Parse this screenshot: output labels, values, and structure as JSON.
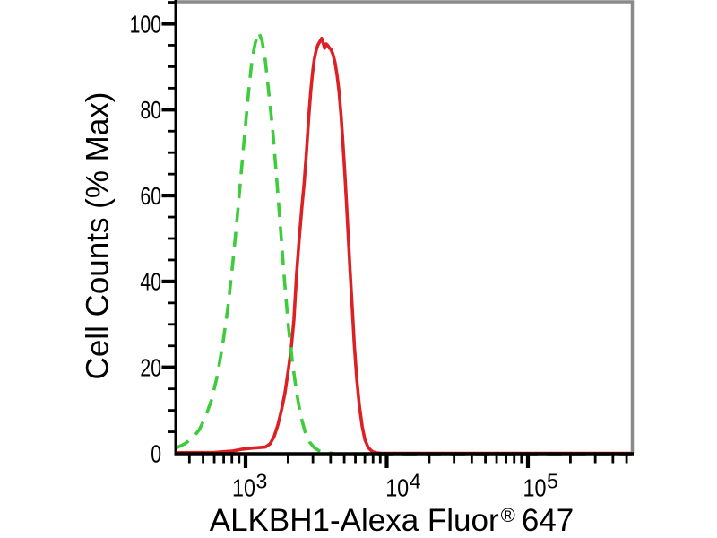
{
  "figure": {
    "background": "#ffffff",
    "frame_color": "#8a8a8a",
    "axis_color": "#000000"
  },
  "chart_data": {
    "type": "line",
    "subtype": "flow-cytometry-histogram",
    "title": "",
    "xlabel": "ALKBH1-Alexa Fluor® 647",
    "xlabel_parts": {
      "main": "ALKBH1-Alexa Fluor",
      "registered_mark": "®",
      "suffix": "647"
    },
    "ylabel": "Cell Counts (% Max)",
    "x_scale": "log",
    "x_range": [
      320,
      545000
    ],
    "y_range": [
      0,
      100
    ],
    "x_major_ticks": [
      1000,
      10000,
      100000
    ],
    "x_major_tick_labels": [
      "10³",
      "10⁴",
      "10⁵"
    ],
    "x_tick_label_base": "10",
    "x_tick_label_exponents": [
      3,
      4,
      5
    ],
    "y_major_ticks": [
      0,
      20,
      40,
      60,
      80,
      100
    ],
    "y_minor_tick_step": 5,
    "grid": false,
    "legend": "none",
    "series": [
      {
        "name": "control-green-dashed",
        "line_style": "dashed",
        "color": "#3ccc3c",
        "points": [
          [
            320,
            1.2
          ],
          [
            370,
            2.2
          ],
          [
            420,
            3.5
          ],
          [
            470,
            5.5
          ],
          [
            520,
            8.5
          ],
          [
            575,
            12.5
          ],
          [
            630,
            18
          ],
          [
            690,
            25.5
          ],
          [
            750,
            34
          ],
          [
            810,
            44
          ],
          [
            870,
            54.5
          ],
          [
            930,
            65
          ],
          [
            990,
            75
          ],
          [
            1050,
            84
          ],
          [
            1110,
            91.5
          ],
          [
            1170,
            95.5
          ],
          [
            1240,
            98
          ],
          [
            1310,
            96
          ],
          [
            1380,
            91.5
          ],
          [
            1450,
            85
          ],
          [
            1560,
            75
          ],
          [
            1660,
            64
          ],
          [
            1770,
            52
          ],
          [
            1890,
            40
          ],
          [
            2010,
            29.5
          ],
          [
            2150,
            21
          ],
          [
            2300,
            14
          ],
          [
            2460,
            8.7
          ],
          [
            2640,
            5
          ],
          [
            2840,
            2.6
          ],
          [
            3070,
            1.3
          ],
          [
            3330,
            0.55
          ],
          [
            3650,
            0.2
          ],
          [
            4000,
            0.05
          ],
          [
            4500,
            0
          ],
          [
            545000,
            0
          ]
        ]
      },
      {
        "name": "alkbh1-red-solid",
        "line_style": "solid",
        "color": "#dc2023",
        "points": [
          [
            320,
            0.15
          ],
          [
            600,
            0.2
          ],
          [
            800,
            0.5
          ],
          [
            950,
            0.95
          ],
          [
            1100,
            1.2
          ],
          [
            1380,
            1.45
          ],
          [
            1490,
            2.2
          ],
          [
            1590,
            3.8
          ],
          [
            1690,
            6.5
          ],
          [
            1790,
            9.8
          ],
          [
            1900,
            14
          ],
          [
            2000,
            19
          ],
          [
            2100,
            24
          ],
          [
            2200,
            31
          ],
          [
            2300,
            42
          ],
          [
            2400,
            50
          ],
          [
            2500,
            57
          ],
          [
            2600,
            63
          ],
          [
            2700,
            70
          ],
          [
            2800,
            78
          ],
          [
            2900,
            84.5
          ],
          [
            2980,
            88.5
          ],
          [
            3060,
            91.5
          ],
          [
            3150,
            93.6
          ],
          [
            3250,
            95
          ],
          [
            3350,
            95.8
          ],
          [
            3460,
            96.6
          ],
          [
            3540,
            95.6
          ],
          [
            3630,
            94.3
          ],
          [
            3730,
            95.3
          ],
          [
            3830,
            94.9
          ],
          [
            3930,
            94.3
          ],
          [
            4000,
            94.2
          ],
          [
            4150,
            93
          ],
          [
            4300,
            91
          ],
          [
            4450,
            88
          ],
          [
            4600,
            84
          ],
          [
            4750,
            78.5
          ],
          [
            4900,
            72
          ],
          [
            5050,
            65
          ],
          [
            5200,
            57.5
          ],
          [
            5350,
            50
          ],
          [
            5500,
            42.5
          ],
          [
            5700,
            33.5
          ],
          [
            5900,
            25
          ],
          [
            6150,
            17
          ],
          [
            6400,
            11
          ],
          [
            6700,
            6.3
          ],
          [
            7000,
            3.2
          ],
          [
            7400,
            1.3
          ],
          [
            7900,
            0.4
          ],
          [
            8500,
            0.08
          ],
          [
            9200,
            0
          ],
          [
            545000,
            0
          ]
        ]
      }
    ]
  }
}
